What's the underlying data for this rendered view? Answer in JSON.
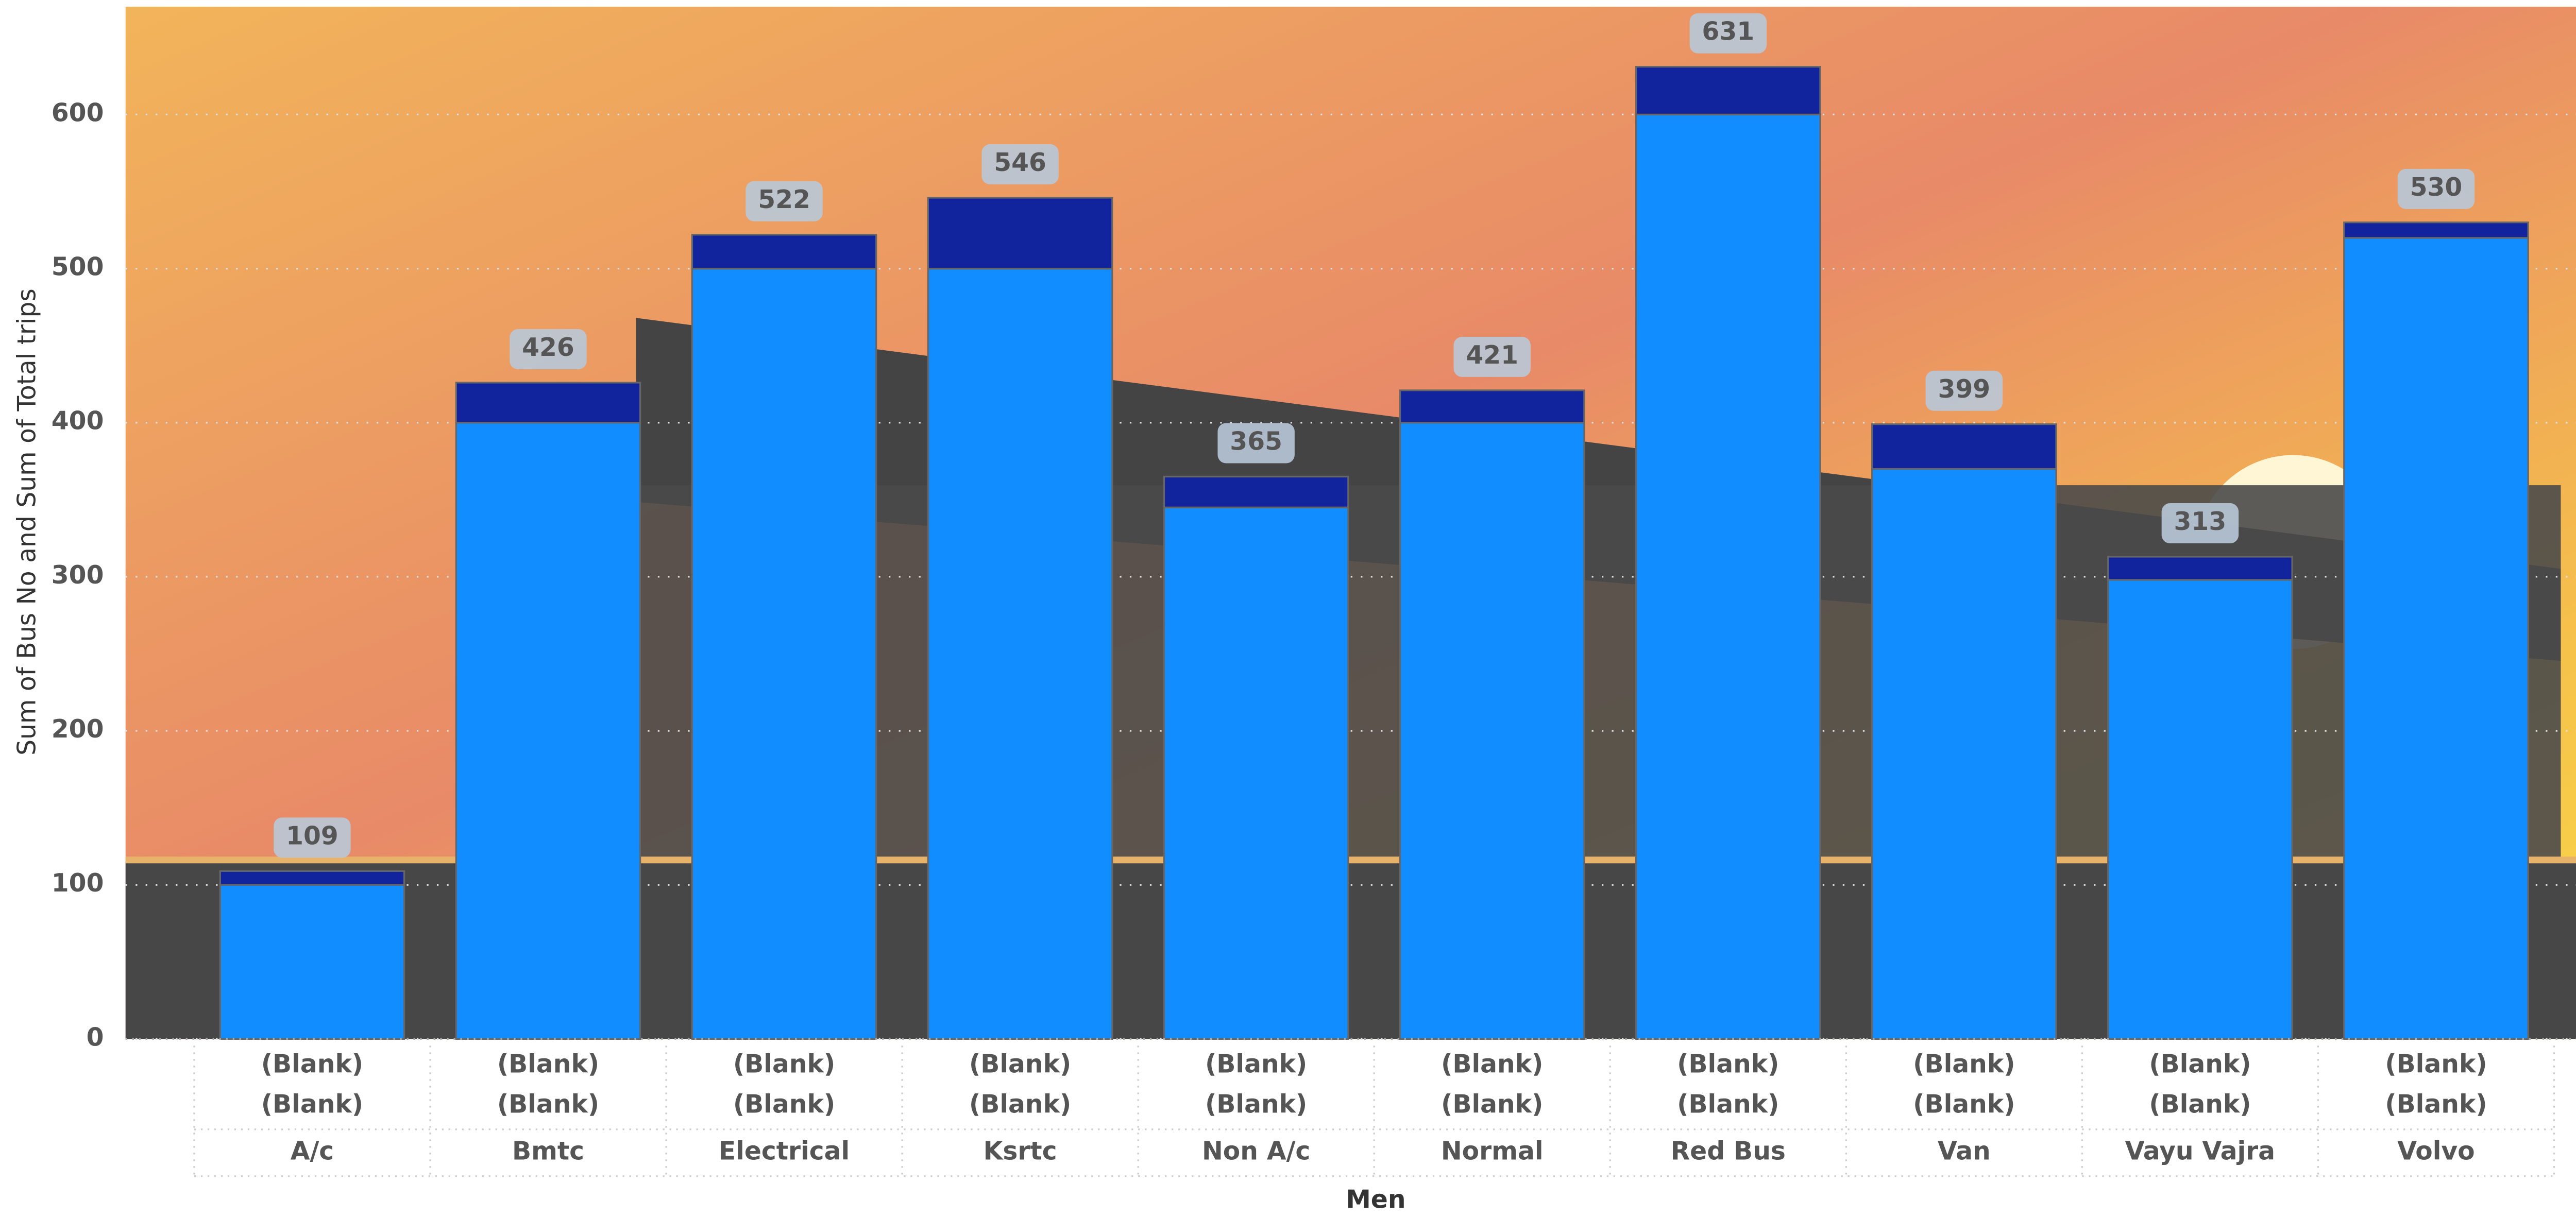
{
  "chart_data": {
    "type": "stacked_bar",
    "y_label": "Sum of Bus No and Sum of Total trips",
    "x_label": "Men",
    "category_levels": [
      [
        "(Blank)",
        "(Blank)",
        "(Blank)",
        "(Blank)",
        "(Blank)",
        "(Blank)",
        "(Blank)",
        "(Blank)",
        "(Blank)",
        "(Blank)"
      ],
      [
        "(Blank)",
        "(Blank)",
        "(Blank)",
        "(Blank)",
        "(Blank)",
        "(Blank)",
        "(Blank)",
        "(Blank)",
        "(Blank)",
        "(Blank)"
      ]
    ],
    "categories": [
      "A/c",
      "Bmtc",
      "Electrical",
      "Ksrtc",
      "Non A/c",
      "Normal",
      "Red Bus",
      "Van",
      "Vayu Vajra",
      "Volvo"
    ],
    "series": [
      {
        "color": "#118dff",
        "values": [
          100,
          400,
          500,
          500,
          345,
          400,
          600,
          370,
          298,
          520
        ]
      },
      {
        "color": "#12239e",
        "values": [
          9,
          26,
          22,
          46,
          20,
          21,
          31,
          29,
          15,
          10
        ]
      }
    ],
    "totals": [
      109,
      426,
      522,
      546,
      365,
      421,
      631,
      399,
      313,
      530
    ],
    "ylim": [
      0,
      670
    ],
    "yticks": [
      0,
      100,
      200,
      300,
      400,
      500,
      600
    ],
    "grid": true
  }
}
